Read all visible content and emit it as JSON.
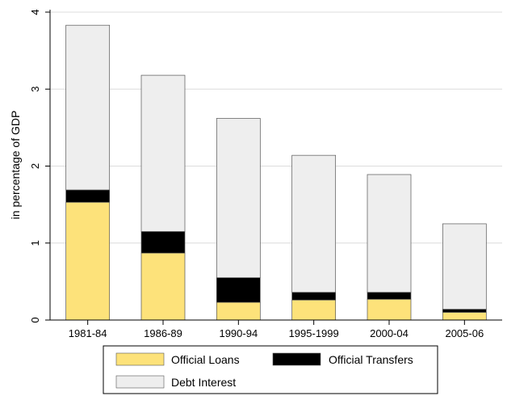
{
  "chart_data": {
    "type": "bar",
    "stacked": true,
    "categories": [
      "1981-84",
      "1986-89",
      "1990-94",
      "1995-1999",
      "2000-04",
      "2005-06"
    ],
    "series": [
      {
        "name": "Official Loans",
        "color": "#FDE27A",
        "values": [
          1.53,
          0.87,
          0.23,
          0.26,
          0.27,
          0.1
        ]
      },
      {
        "name": "Official Transfers",
        "color": "#000000",
        "values": [
          0.16,
          0.28,
          0.32,
          0.1,
          0.09,
          0.04
        ]
      },
      {
        "name": "Debt Interest",
        "color": "#EEEEEE",
        "values": [
          2.14,
          2.03,
          2.07,
          1.78,
          1.53,
          1.11
        ]
      }
    ],
    "ylabel": "in percentage of GDP",
    "xlabel": "",
    "ylim": [
      0,
      4
    ],
    "yticks": [
      0,
      1,
      2,
      3,
      4
    ],
    "grid": true,
    "legend_position": "bottom"
  }
}
